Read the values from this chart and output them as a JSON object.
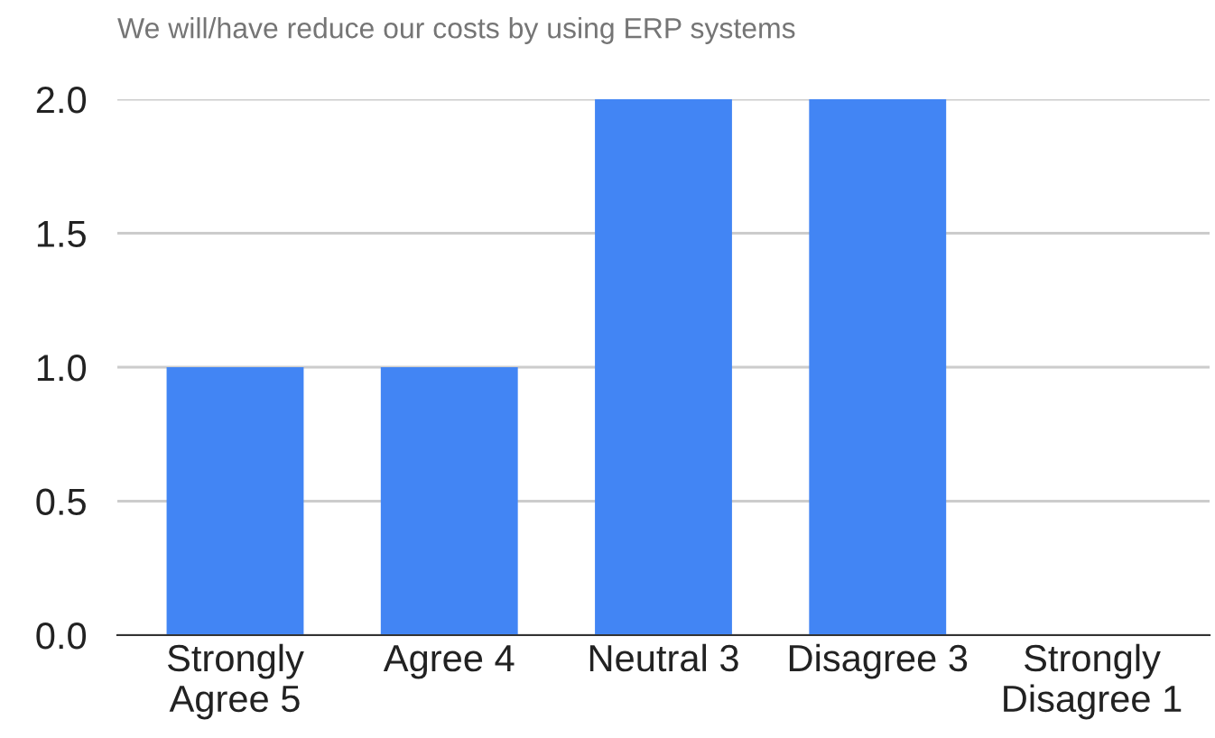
{
  "chart_data": {
    "type": "bar",
    "title": "We will/have reduce our costs by using ERP systems",
    "categories": [
      "Strongly\nAgree 5",
      "Agree 4",
      "Neutral 3",
      "Disagree 3",
      "Strongly\nDisagree 1"
    ],
    "values": [
      1,
      1,
      2,
      2,
      0
    ],
    "color": "#4285f4",
    "ylim": [
      0,
      2
    ],
    "yticks": [
      {
        "value": 0,
        "label": "0.0"
      },
      {
        "value": 0.5,
        "label": "0.5"
      },
      {
        "value": 1,
        "label": "1.0"
      },
      {
        "value": 1.5,
        "label": "1.5"
      },
      {
        "value": 2,
        "label": "2.0"
      }
    ],
    "grid": "y",
    "legend": false
  }
}
